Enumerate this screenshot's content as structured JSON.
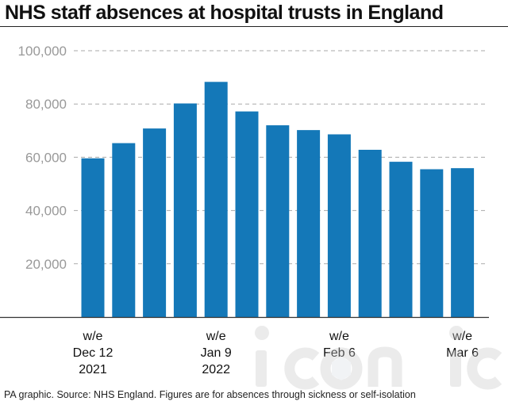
{
  "title": "NHS staff absences at hospital trusts in England",
  "footer": "PA graphic. Source: NHS England. Figures are for absences through sickness or self-isolation",
  "watermark_text": "iconic",
  "colors": {
    "bar": "#1478b8",
    "grid": "#aaaaaa",
    "axis": "#333333",
    "tick_text": "#999999",
    "label_text": "#111111"
  },
  "chart_data": {
    "type": "bar",
    "title": "NHS staff absences at hospital trusts in England",
    "xlabel": "",
    "ylabel": "",
    "ylim": [
      0,
      100000
    ],
    "yticks": [
      20000,
      40000,
      60000,
      80000,
      100000
    ],
    "ytick_labels": [
      "20,000",
      "40,000",
      "60,000",
      "80,000",
      "100,000"
    ],
    "grid": true,
    "values": [
      59600,
      65300,
      70800,
      80200,
      88300,
      77200,
      72000,
      70200,
      68600,
      62800,
      58300,
      55500,
      55900
    ],
    "x_labels": [
      {
        "index": 0,
        "lines": [
          "w/e",
          "Dec 12",
          "2021"
        ]
      },
      {
        "index": 4,
        "lines": [
          "w/e",
          "Jan 9",
          "2022"
        ]
      },
      {
        "index": 8,
        "lines": [
          "w/e",
          "Feb 6"
        ]
      },
      {
        "index": 12,
        "lines": [
          "w/e",
          "Mar 6"
        ]
      }
    ]
  }
}
